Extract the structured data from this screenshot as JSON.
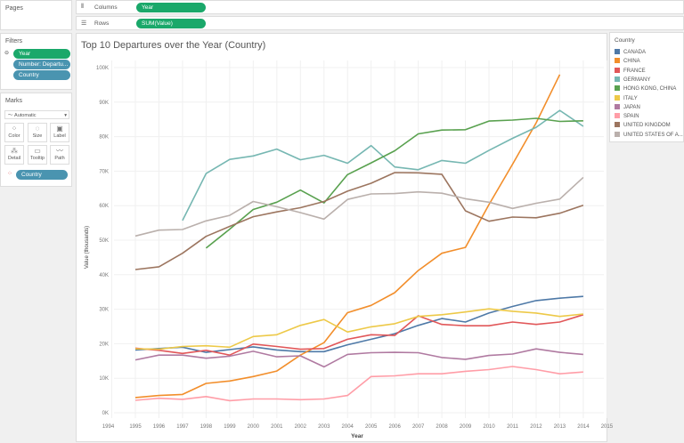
{
  "pages": {
    "title": "Pages"
  },
  "shelves": {
    "columns_label": "Columns",
    "columns_pill": "Year",
    "rows_label": "Rows",
    "rows_pill": "SUM(Value)"
  },
  "filters": {
    "title": "Filters",
    "items": [
      "Year",
      "Number: Departu...",
      "Country"
    ]
  },
  "marks": {
    "title": "Marks",
    "type": "Automatic",
    "buttons": [
      "Color",
      "Size",
      "Label",
      "Detail",
      "Tooltip",
      "Path"
    ],
    "color_pill": "Country"
  },
  "legend": {
    "title": "Country",
    "items": [
      {
        "label": "CANADA",
        "color": "#4e79a7"
      },
      {
        "label": "CHINA",
        "color": "#f28e2b"
      },
      {
        "label": "FRANCE",
        "color": "#e15759"
      },
      {
        "label": "GERMANY",
        "color": "#76b7b2"
      },
      {
        "label": "HONG KONG, CHINA",
        "color": "#59a14f"
      },
      {
        "label": "ITALY",
        "color": "#edc948"
      },
      {
        "label": "JAPAN",
        "color": "#b07aa1"
      },
      {
        "label": "SPAIN",
        "color": "#ff9da7"
      },
      {
        "label": "UNITED KINGDOM",
        "color": "#9c755f"
      },
      {
        "label": "UNITED STATES OF A...",
        "color": "#bab0ac"
      }
    ]
  },
  "chart_data": {
    "type": "line",
    "title": "Top 10 Departures over the Year (Country)",
    "xlabel": "Year",
    "ylabel": "Value (thousands)",
    "xlim": [
      1994,
      2015
    ],
    "ylim": [
      0,
      100
    ],
    "x_ticks": [
      1994,
      1995,
      1996,
      1997,
      1998,
      1999,
      2000,
      2001,
      2002,
      2003,
      2004,
      2005,
      2006,
      2007,
      2008,
      2009,
      2010,
      2011,
      2012,
      2013,
      2014,
      2015
    ],
    "y_ticks": [
      "0K",
      "10K",
      "20K",
      "30K",
      "40K",
      "50K",
      "60K",
      "70K",
      "80K",
      "90K",
      "100K"
    ],
    "grid": true,
    "legend_position": "right",
    "series": [
      {
        "name": "CANADA",
        "start": 1995,
        "values": [
          18.2,
          18.6,
          19.0,
          17.5,
          18.3,
          19.1,
          18.2,
          17.7,
          17.7,
          19.7,
          21.3,
          22.9,
          25.3,
          27.3,
          26.3,
          28.9,
          30.8,
          32.5,
          33.2,
          33.7
        ]
      },
      {
        "name": "CHINA",
        "start": 1995,
        "values": [
          4.4,
          5.0,
          5.3,
          8.5,
          9.2,
          10.5,
          12.1,
          16.7,
          20.3,
          29.0,
          31.1,
          34.8,
          41.2,
          46.2,
          47.9,
          60.3,
          72.0,
          84.0,
          98.0
        ]
      },
      {
        "name": "FRANCE",
        "start": 1995,
        "values": [
          18.7,
          18.1,
          17.2,
          18.1,
          16.7,
          19.9,
          19.2,
          18.4,
          18.6,
          21.3,
          22.6,
          22.4,
          28.1,
          25.6,
          25.2,
          25.2,
          26.3,
          25.6,
          26.3,
          28.4
        ]
      },
      {
        "name": "GERMANY",
        "start": 1997,
        "values": [
          55.7,
          69.3,
          73.4,
          74.4,
          76.4,
          73.3,
          74.6,
          72.3,
          77.4,
          71.2,
          70.4,
          73.1,
          72.3,
          76.0,
          79.5,
          82.7,
          87.6,
          83.0
        ]
      },
      {
        "name": "HONG KONG, CHINA",
        "start": 1998,
        "values": [
          47.7,
          53.2,
          58.9,
          61.0,
          64.5,
          60.8,
          69.0,
          72.4,
          75.9,
          80.8,
          81.9,
          82.0,
          84.5,
          84.8,
          85.3,
          84.4,
          84.6
        ]
      },
      {
        "name": "ITALY",
        "start": 1995,
        "values": [
          18.5,
          18.4,
          19.2,
          19.4,
          19.0,
          22.1,
          22.6,
          25.3,
          27.0,
          23.4,
          24.9,
          25.8,
          27.9,
          28.4,
          29.2,
          30.1,
          29.4,
          28.9,
          27.9,
          28.6
        ]
      },
      {
        "name": "JAPAN",
        "start": 1995,
        "values": [
          15.3,
          16.7,
          16.7,
          15.8,
          16.4,
          17.8,
          16.2,
          16.5,
          13.3,
          16.9,
          17.4,
          17.5,
          17.4,
          16.0,
          15.5,
          16.6,
          17.0,
          18.5,
          17.5,
          16.9
        ]
      },
      {
        "name": "SPAIN",
        "start": 1995,
        "values": [
          3.6,
          4.2,
          3.9,
          4.7,
          3.5,
          4.0,
          4.0,
          3.8,
          4.0,
          5.0,
          10.5,
          10.7,
          11.3,
          11.3,
          12.0,
          12.5,
          13.4,
          12.5,
          11.3,
          11.8
        ]
      },
      {
        "name": "UNITED KINGDOM",
        "start": 1995,
        "values": [
          41.5,
          42.3,
          46.2,
          51.1,
          54.0,
          56.8,
          58.2,
          59.4,
          61.2,
          64.2,
          66.5,
          69.6,
          69.5,
          69.1,
          58.5,
          55.5,
          56.7,
          56.5,
          57.8,
          60.1
        ]
      },
      {
        "name": "UNITED STATES OF A...",
        "start": 1995,
        "values": [
          51.2,
          52.9,
          53.1,
          55.6,
          57.2,
          61.2,
          59.7,
          58.0,
          56.1,
          61.8,
          63.4,
          63.5,
          64.0,
          63.6,
          62.0,
          61.0,
          59.2,
          60.7,
          61.9,
          68.2
        ]
      }
    ]
  }
}
